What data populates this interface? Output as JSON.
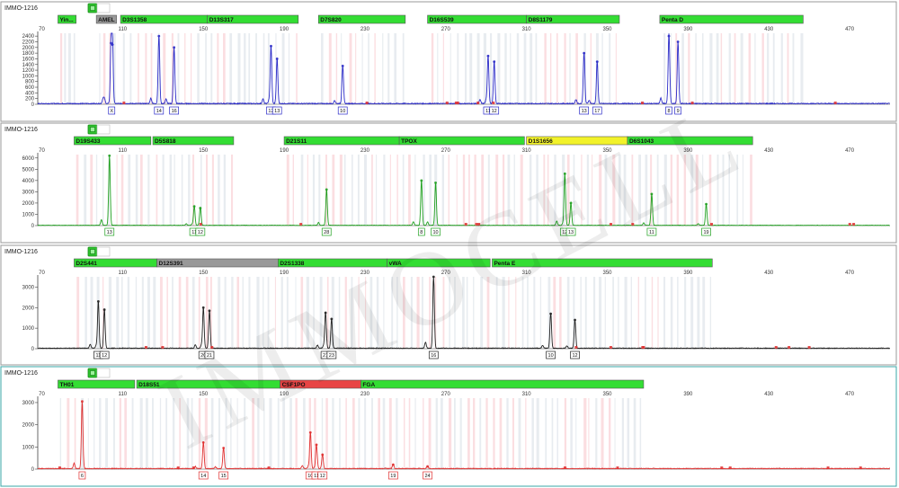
{
  "watermark": "IMMOCELL",
  "colors": {
    "blue": "#2b2bc8",
    "green": "#1fa01f",
    "black": "#222222",
    "red": "#e03030",
    "marker_green": "#33dd33",
    "marker_yellow": "#f2f22a",
    "marker_gray": "#999999",
    "marker_red": "#e84444",
    "panel_border_selected": "#3aa7a7"
  },
  "x_axis": {
    "ticks": [
      70,
      110,
      150,
      190,
      230,
      270,
      310,
      350,
      390,
      430,
      470
    ],
    "range": [
      68,
      490
    ]
  },
  "panels": [
    {
      "sample": "IMMO-1216",
      "color": "blue",
      "selected": false,
      "y_ticks": [
        0,
        200,
        400,
        600,
        800,
        1000,
        1200,
        1400,
        1600,
        1800,
        2000,
        2200,
        2400
      ],
      "y_max": 2500,
      "markers": [
        {
          "label": "Yin...",
          "start": 78,
          "end": 87,
          "color": "marker_green"
        },
        {
          "label": "AMEL",
          "start": 97,
          "end": 107,
          "color": "marker_gray"
        },
        {
          "label": "D3S1358",
          "start": 109,
          "end": 152,
          "color": "marker_green"
        },
        {
          "label": "D13S317",
          "start": 152,
          "end": 197,
          "color": "marker_green"
        },
        {
          "label": "D7S820",
          "start": 207,
          "end": 250,
          "color": "marker_green"
        },
        {
          "label": "D16S539",
          "start": 261,
          "end": 310,
          "color": "marker_green"
        },
        {
          "label": "D8S1179",
          "start": 310,
          "end": 356,
          "color": "marker_green"
        },
        {
          "label": "Penta D",
          "start": 376,
          "end": 447,
          "color": "marker_green"
        }
      ],
      "peaks": [
        {
          "x": 104.3,
          "h": 2150
        },
        {
          "x": 105.0,
          "h": 2100
        },
        {
          "x": 128.0,
          "h": 2400
        },
        {
          "x": 135.5,
          "h": 2000
        },
        {
          "x": 183.5,
          "h": 2050
        },
        {
          "x": 186.5,
          "h": 1600
        },
        {
          "x": 219.0,
          "h": 1350
        },
        {
          "x": 291.0,
          "h": 1700
        },
        {
          "x": 294.0,
          "h": 1500
        },
        {
          "x": 338.5,
          "h": 1800
        },
        {
          "x": 345.0,
          "h": 1500
        },
        {
          "x": 380.5,
          "h": 2400
        },
        {
          "x": 385.0,
          "h": 2200
        }
      ],
      "alleles": [
        {
          "x": 104.6,
          "label": "X"
        },
        {
          "x": 128.0,
          "label": "14"
        },
        {
          "x": 135.5,
          "label": "16"
        },
        {
          "x": 183.5,
          "label": "12"
        },
        {
          "x": 186.5,
          "label": "13"
        },
        {
          "x": 219.0,
          "label": "10"
        },
        {
          "x": 291.0,
          "label": "11"
        },
        {
          "x": 294.0,
          "label": "12"
        },
        {
          "x": 338.5,
          "label": "13"
        },
        {
          "x": 345.0,
          "label": "17"
        },
        {
          "x": 380.5,
          "label": "8"
        },
        {
          "x": 385.0,
          "label": "9"
        }
      ]
    },
    {
      "sample": "IMMO-1216",
      "color": "green",
      "selected": false,
      "y_ticks": [
        0,
        1000,
        2000,
        3000,
        4000,
        5000,
        6000
      ],
      "y_max": 6300,
      "markers": [
        {
          "label": "D19S433",
          "start": 86,
          "end": 124,
          "color": "marker_green"
        },
        {
          "label": "D5S818",
          "start": 125,
          "end": 165,
          "color": "marker_green"
        },
        {
          "label": "D21S11",
          "start": 190,
          "end": 247,
          "color": "marker_green"
        },
        {
          "label": "TPOX",
          "start": 247,
          "end": 309,
          "color": "marker_green"
        },
        {
          "label": "D1S1656",
          "start": 310,
          "end": 360,
          "color": "marker_yellow"
        },
        {
          "label": "D6S1043",
          "start": 360,
          "end": 422,
          "color": "marker_green"
        }
      ],
      "peaks": [
        {
          "x": 103.5,
          "h": 6200
        },
        {
          "x": 145.5,
          "h": 1700
        },
        {
          "x": 148.5,
          "h": 1550
        },
        {
          "x": 211.0,
          "h": 3200
        },
        {
          "x": 258.0,
          "h": 4000
        },
        {
          "x": 265.0,
          "h": 3800
        },
        {
          "x": 329.0,
          "h": 4600
        },
        {
          "x": 332.0,
          "h": 2000
        },
        {
          "x": 372.0,
          "h": 2800
        },
        {
          "x": 399.0,
          "h": 1900
        }
      ],
      "alleles": [
        {
          "x": 103.5,
          "label": "13"
        },
        {
          "x": 145.5,
          "label": "11"
        },
        {
          "x": 148.5,
          "label": "12"
        },
        {
          "x": 211.0,
          "label": "28"
        },
        {
          "x": 258.0,
          "label": "8"
        },
        {
          "x": 265.0,
          "label": "10"
        },
        {
          "x": 329.0,
          "label": "12"
        },
        {
          "x": 332.0,
          "label": "13"
        },
        {
          "x": 372.0,
          "label": "11"
        },
        {
          "x": 399.0,
          "label": "19"
        }
      ]
    },
    {
      "sample": "IMMO-1216",
      "color": "black",
      "selected": false,
      "y_ticks": [
        0,
        1000,
        2000,
        3000
      ],
      "y_max": 3500,
      "markers": [
        {
          "label": "D2S441",
          "start": 86,
          "end": 127,
          "color": "marker_green"
        },
        {
          "label": "D12S391",
          "start": 127,
          "end": 187,
          "color": "marker_gray"
        },
        {
          "label": "D2S1338",
          "start": 187,
          "end": 241,
          "color": "marker_green"
        },
        {
          "label": "vWA",
          "start": 241,
          "end": 292,
          "color": "marker_green"
        },
        {
          "label": "Penta E",
          "start": 293,
          "end": 402,
          "color": "marker_green"
        }
      ],
      "peaks": [
        {
          "x": 98.0,
          "h": 2300
        },
        {
          "x": 101.0,
          "h": 1900
        },
        {
          "x": 150.0,
          "h": 2000
        },
        {
          "x": 153.0,
          "h": 1850
        },
        {
          "x": 210.5,
          "h": 1750
        },
        {
          "x": 213.5,
          "h": 1450
        },
        {
          "x": 264.0,
          "h": 3500
        },
        {
          "x": 322.0,
          "h": 1700
        },
        {
          "x": 334.0,
          "h": 1400
        }
      ],
      "alleles": [
        {
          "x": 98.0,
          "label": "11"
        },
        {
          "x": 101.0,
          "label": "12"
        },
        {
          "x": 150.0,
          "label": "20"
        },
        {
          "x": 153.0,
          "label": "21"
        },
        {
          "x": 210.5,
          "label": "21"
        },
        {
          "x": 213.5,
          "label": "23"
        },
        {
          "x": 264.0,
          "label": "16"
        },
        {
          "x": 322.0,
          "label": "10"
        },
        {
          "x": 334.0,
          "label": "12"
        }
      ]
    },
    {
      "sample": "IMMO-1216",
      "color": "red",
      "selected": true,
      "y_ticks": [
        0,
        1000,
        2000,
        3000
      ],
      "y_max": 3200,
      "markers": [
        {
          "label": "TH01",
          "start": 78,
          "end": 116,
          "color": "marker_green"
        },
        {
          "label": "D18S51",
          "start": 117,
          "end": 188,
          "color": "marker_green"
        },
        {
          "label": "CSF1PO",
          "start": 188,
          "end": 228,
          "color": "marker_red"
        },
        {
          "label": "FGA",
          "start": 228,
          "end": 368,
          "color": "marker_green"
        }
      ],
      "peaks": [
        {
          "x": 90.0,
          "h": 3050
        },
        {
          "x": 150.0,
          "h": 1200
        },
        {
          "x": 160.0,
          "h": 950
        },
        {
          "x": 203.0,
          "h": 1650
        },
        {
          "x": 206.0,
          "h": 1100
        },
        {
          "x": 209.0,
          "h": 650
        },
        {
          "x": 244.0,
          "h": 200
        },
        {
          "x": 261.0,
          "h": 120
        }
      ],
      "alleles": [
        {
          "x": 90.0,
          "label": "6"
        },
        {
          "x": 150.0,
          "label": "14"
        },
        {
          "x": 160.0,
          "label": "15"
        },
        {
          "x": 203.0,
          "label": "10"
        },
        {
          "x": 206.0,
          "label": "11"
        },
        {
          "x": 209.0,
          "label": "12"
        },
        {
          "x": 244.0,
          "label": "19"
        },
        {
          "x": 261.0,
          "label": "24"
        }
      ]
    }
  ],
  "chart_data": {
    "type": "line",
    "title": "",
    "xlabel": "",
    "ylabel": "",
    "xlim": [
      68,
      490
    ],
    "series": [
      {
        "panel": 1,
        "peaks_x": [
          104.3,
          105.0,
          128.0,
          135.5,
          183.5,
          186.5,
          219.0,
          291.0,
          294.0,
          338.5,
          345.0,
          380.5,
          385.0
        ],
        "peaks_y": [
          2150,
          2100,
          2400,
          2000,
          2050,
          1600,
          1350,
          1700,
          1500,
          1800,
          1500,
          2400,
          2200
        ]
      },
      {
        "panel": 2,
        "peaks_x": [
          103.5,
          145.5,
          148.5,
          211.0,
          258.0,
          265.0,
          329.0,
          332.0,
          372.0,
          399.0
        ],
        "peaks_y": [
          6200,
          1700,
          1550,
          3200,
          4000,
          3800,
          4600,
          2000,
          2800,
          1900
        ]
      },
      {
        "panel": 3,
        "peaks_x": [
          98.0,
          101.0,
          150.0,
          153.0,
          210.5,
          213.5,
          264.0,
          322.0,
          334.0
        ],
        "peaks_y": [
          2300,
          1900,
          2000,
          1850,
          1750,
          1450,
          3500,
          1700,
          1400
        ]
      },
      {
        "panel": 4,
        "peaks_x": [
          90.0,
          150.0,
          160.0,
          203.0,
          206.0,
          209.0,
          244.0,
          261.0
        ],
        "peaks_y": [
          3050,
          1200,
          950,
          1650,
          1100,
          650,
          200,
          120
        ]
      }
    ]
  }
}
